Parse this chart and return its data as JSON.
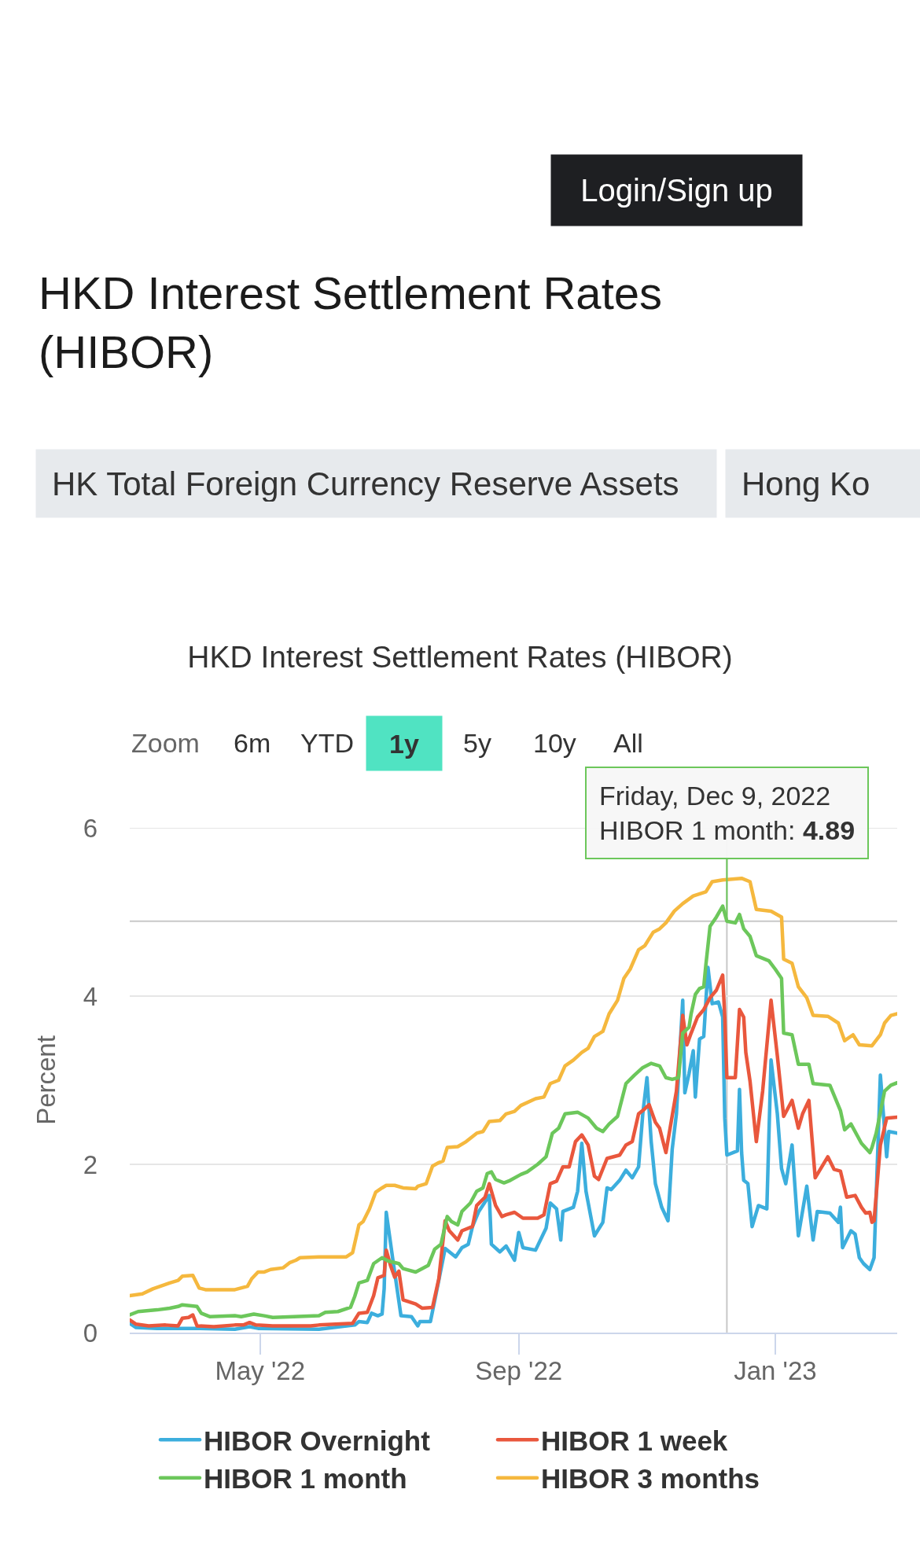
{
  "chart_data": {
    "type": "line",
    "title": "HKD Interest Settlement Rates (HIBOR)",
    "ylabel": "Percent",
    "xlim": [
      "2022-02-28",
      "2023-02-28"
    ],
    "xticks": [
      {
        "value": "2022-05-01",
        "label": "May '22"
      },
      {
        "value": "2022-09-01",
        "label": "Sep '22"
      },
      {
        "value": "2023-01-01",
        "label": "Jan '23"
      }
    ],
    "ylim": [
      0,
      6
    ],
    "yticks": [
      0,
      2,
      4,
      6
    ],
    "grid": "y",
    "legend": "bottom",
    "ref_lines": [
      {
        "axis": "x",
        "value": "2022-12-09",
        "color": "#c8c8c8"
      },
      {
        "axis": "y",
        "value": 4.89,
        "color": "#c8c8c8"
      }
    ],
    "annotations": [
      "Login/Sign up",
      "HKD Interest Settlement Rates (HIBOR)",
      "HK Total Foreign Currency Reserve Assets",
      "Hong Ko",
      "Zoom",
      "6m",
      "YTD",
      "1y",
      "5y",
      "10y",
      "All",
      {
        "text": "Friday, Dec 9, 2022\nHIBOR 1 month: 4.89",
        "x": "2022-12-09",
        "y": 4.89
      }
    ],
    "series": [
      {
        "name": "HIBOR Overnight",
        "color": "#3caedd",
        "x": [
          "2022-02-28",
          "2022-03-03",
          "2022-03-13",
          "2022-03-30",
          "2022-04-19",
          "2022-04-26",
          "2022-04-30",
          "2022-05-29",
          "2022-06-15",
          "2022-06-17",
          "2022-06-21",
          "2022-06-23",
          "2022-06-26",
          "2022-06-28",
          "2022-06-29",
          "2022-06-30",
          "2022-07-03",
          "2022-07-07",
          "2022-07-12",
          "2022-07-15",
          "2022-07-16",
          "2022-07-21",
          "2022-07-24",
          "2022-07-26",
          "2022-07-28",
          "2022-08-02",
          "2022-08-05",
          "2022-08-08",
          "2022-08-10",
          "2022-08-13",
          "2022-08-18",
          "2022-08-19",
          "2022-08-23",
          "2022-08-26",
          "2022-08-30",
          "2022-09-01",
          "2022-09-03",
          "2022-09-09",
          "2022-09-14",
          "2022-09-16",
          "2022-09-19",
          "2022-09-21",
          "2022-09-22",
          "2022-09-27",
          "2022-09-29",
          "2022-10-01",
          "2022-10-03",
          "2022-10-07",
          "2022-10-11",
          "2022-10-13",
          "2022-10-15",
          "2022-10-19",
          "2022-10-22",
          "2022-10-25",
          "2022-10-28",
          "2022-10-30",
          "2022-11-01",
          "2022-11-03",
          "2022-11-05",
          "2022-11-08",
          "2022-11-11",
          "2022-11-13",
          "2022-11-15",
          "2022-11-18",
          "2022-11-19",
          "2022-11-21",
          "2022-11-23",
          "2022-11-24",
          "2022-11-26",
          "2022-11-28",
          "2022-11-30",
          "2022-12-02",
          "2022-12-05",
          "2022-12-07",
          "2022-12-08",
          "2022-12-09",
          "2022-12-14",
          "2022-12-15",
          "2022-12-16",
          "2022-12-17",
          "2022-12-19",
          "2022-12-21",
          "2022-12-24",
          "2022-12-28",
          "2022-12-30",
          "2023-01-02",
          "2023-01-04",
          "2023-01-06",
          "2023-01-09",
          "2023-01-12",
          "2023-01-16",
          "2023-01-19",
          "2023-01-21",
          "2023-01-27",
          "2023-01-31",
          "2023-02-01",
          "2023-02-02",
          "2023-02-06",
          "2023-02-08",
          "2023-02-10",
          "2023-02-12",
          "2023-02-15",
          "2023-02-17",
          "2023-02-20",
          "2023-02-23",
          "2023-02-24",
          "2023-02-28"
        ],
        "values": [
          0.11,
          0.06,
          0.05,
          0.05,
          0.04,
          0.07,
          0.05,
          0.04,
          0.09,
          0.13,
          0.12,
          0.23,
          0.2,
          0.22,
          0.52,
          1.43,
          0.89,
          0.2,
          0.19,
          0.08,
          0.13,
          0.13,
          0.5,
          0.75,
          1.0,
          0.9,
          1.01,
          1.05,
          1.26,
          1.44,
          1.63,
          1.05,
          0.96,
          1.03,
          0.86,
          1.19,
          1.01,
          0.98,
          1.24,
          1.54,
          1.47,
          1.1,
          1.44,
          1.49,
          1.68,
          2.25,
          1.68,
          1.15,
          1.31,
          1.72,
          1.7,
          1.81,
          1.93,
          1.84,
          1.97,
          2.6,
          3.03,
          2.27,
          1.77,
          1.49,
          1.33,
          2.18,
          2.6,
          3.95,
          2.85,
          3.08,
          3.35,
          2.8,
          3.49,
          3.52,
          4.34,
          3.91,
          3.93,
          3.75,
          2.55,
          2.11,
          2.16,
          2.89,
          2.14,
          1.81,
          1.77,
          1.26,
          1.51,
          1.47,
          3.24,
          2.6,
          1.95,
          1.77,
          2.23,
          1.15,
          1.74,
          1.1,
          1.44,
          1.42,
          1.31,
          1.49,
          1.01,
          1.21,
          1.17,
          0.89,
          0.82,
          0.75,
          0.89,
          3.06,
          2.09,
          2.39,
          2.37
        ]
      },
      {
        "name": "HIBOR 1 week",
        "color": "#e9573d",
        "x": [
          "2022-02-28",
          "2022-03-03",
          "2022-03-09",
          "2022-03-17",
          "2022-03-23",
          "2022-03-25",
          "2022-03-28",
          "2022-03-30",
          "2022-04-01",
          "2022-04-09",
          "2022-04-19",
          "2022-04-23",
          "2022-04-26",
          "2022-04-29",
          "2022-05-07",
          "2022-05-25",
          "2022-05-29",
          "2022-06-14",
          "2022-06-17",
          "2022-06-21",
          "2022-06-24",
          "2022-06-26",
          "2022-06-29",
          "2022-06-30",
          "2022-07-02",
          "2022-07-04",
          "2022-07-06",
          "2022-07-08",
          "2022-07-14",
          "2022-07-17",
          "2022-07-22",
          "2022-07-25",
          "2022-07-28",
          "2022-07-30",
          "2022-08-03",
          "2022-08-05",
          "2022-08-10",
          "2022-08-12",
          "2022-08-16",
          "2022-08-18",
          "2022-08-21",
          "2022-08-24",
          "2022-08-26",
          "2022-08-30",
          "2022-09-03",
          "2022-09-10",
          "2022-09-13",
          "2022-09-16",
          "2022-09-19",
          "2022-09-22",
          "2022-09-25",
          "2022-09-28",
          "2022-10-01",
          "2022-10-04",
          "2022-10-07",
          "2022-10-09",
          "2022-10-13",
          "2022-10-19",
          "2022-10-22",
          "2022-10-25",
          "2022-10-28",
          "2022-10-30",
          "2022-11-02",
          "2022-11-05",
          "2022-11-07",
          "2022-11-10",
          "2022-11-15",
          "2022-11-18",
          "2022-11-20",
          "2022-11-22",
          "2022-11-25",
          "2022-11-28",
          "2022-12-01",
          "2022-12-04",
          "2022-12-07",
          "2022-12-08",
          "2022-12-09",
          "2022-12-13",
          "2022-12-15",
          "2022-12-17",
          "2022-12-18",
          "2022-12-20",
          "2022-12-23",
          "2022-12-26",
          "2022-12-30",
          "2023-01-02",
          "2023-01-05",
          "2023-01-09",
          "2023-01-12",
          "2023-01-14",
          "2023-01-17",
          "2023-01-20",
          "2023-01-26",
          "2023-01-29",
          "2023-02-01",
          "2023-02-04",
          "2023-02-08",
          "2023-02-11",
          "2023-02-13",
          "2023-02-15",
          "2023-02-16",
          "2023-02-17",
          "2023-02-20",
          "2023-02-23",
          "2023-02-28"
        ],
        "values": [
          0.15,
          0.1,
          0.08,
          0.09,
          0.08,
          0.17,
          0.18,
          0.21,
          0.08,
          0.07,
          0.09,
          0.09,
          0.12,
          0.09,
          0.08,
          0.08,
          0.09,
          0.11,
          0.23,
          0.24,
          0.44,
          0.65,
          0.68,
          0.98,
          0.8,
          0.66,
          0.73,
          0.39,
          0.34,
          0.29,
          0.3,
          0.64,
          1.33,
          1.21,
          1.1,
          1.21,
          1.26,
          1.51,
          1.61,
          1.77,
          1.51,
          1.38,
          1.4,
          1.43,
          1.36,
          1.36,
          1.4,
          1.77,
          1.8,
          1.97,
          1.97,
          2.27,
          2.35,
          2.23,
          1.86,
          1.82,
          2.07,
          2.11,
          2.23,
          2.27,
          2.6,
          2.64,
          2.71,
          2.5,
          2.43,
          2.14,
          2.87,
          3.77,
          3.42,
          3.56,
          3.75,
          3.84,
          3.98,
          4.07,
          4.25,
          3.75,
          3.03,
          3.03,
          3.84,
          3.75,
          3.33,
          2.99,
          2.27,
          2.87,
          3.95,
          3.29,
          2.57,
          2.76,
          2.43,
          2.6,
          2.76,
          1.84,
          2.09,
          1.94,
          1.92,
          1.61,
          1.63,
          1.49,
          1.42,
          1.43,
          1.31,
          1.33,
          2.23,
          2.55,
          2.56
        ]
      },
      {
        "name": "HIBOR 1 month",
        "color": "#6cc75b",
        "x": [
          "2022-02-28",
          "2022-03-04",
          "2022-03-13",
          "2022-03-19",
          "2022-03-23",
          "2022-03-25",
          "2022-04-01",
          "2022-04-03",
          "2022-04-07",
          "2022-04-19",
          "2022-04-22",
          "2022-04-28",
          "2022-05-03",
          "2022-05-07",
          "2022-05-17",
          "2022-05-29",
          "2022-06-01",
          "2022-06-07",
          "2022-06-13",
          "2022-06-15",
          "2022-06-17",
          "2022-06-21",
          "2022-06-24",
          "2022-06-28",
          "2022-07-01",
          "2022-07-06",
          "2022-07-08",
          "2022-07-14",
          "2022-07-17",
          "2022-07-20",
          "2022-07-23",
          "2022-07-26",
          "2022-07-29",
          "2022-07-31",
          "2022-08-03",
          "2022-08-05",
          "2022-08-09",
          "2022-08-12",
          "2022-08-15",
          "2022-08-17",
          "2022-08-19",
          "2022-08-21",
          "2022-08-25",
          "2022-08-28",
          "2022-09-02",
          "2022-09-05",
          "2022-09-10",
          "2022-09-14",
          "2022-09-17",
          "2022-09-20",
          "2022-09-23",
          "2022-09-29",
          "2022-10-04",
          "2022-10-08",
          "2022-10-11",
          "2022-10-14",
          "2022-10-18",
          "2022-10-22",
          "2022-10-26",
          "2022-10-30",
          "2022-11-03",
          "2022-11-07",
          "2022-11-10",
          "2022-11-13",
          "2022-11-16",
          "2022-11-18",
          "2022-11-21",
          "2022-11-22",
          "2022-11-24",
          "2022-11-26",
          "2022-11-28",
          "2022-11-29",
          "2022-12-01",
          "2022-12-04",
          "2022-12-07",
          "2022-12-09",
          "2022-12-13",
          "2022-12-15",
          "2022-12-17",
          "2022-12-20",
          "2022-12-23",
          "2022-12-29",
          "2023-01-01",
          "2023-01-04",
          "2023-01-05",
          "2023-01-09",
          "2023-01-12",
          "2023-01-17",
          "2023-01-19",
          "2023-01-27",
          "2023-02-01",
          "2023-02-03",
          "2023-02-06",
          "2023-02-11",
          "2023-02-15",
          "2023-02-16",
          "2023-02-18",
          "2023-02-22",
          "2023-02-25",
          "2023-02-28"
        ],
        "values": [
          0.21,
          0.25,
          0.27,
          0.29,
          0.31,
          0.33,
          0.31,
          0.23,
          0.19,
          0.2,
          0.19,
          0.22,
          0.2,
          0.18,
          0.19,
          0.2,
          0.24,
          0.25,
          0.3,
          0.43,
          0.59,
          0.62,
          0.82,
          0.89,
          0.85,
          0.82,
          0.76,
          0.72,
          0.76,
          0.8,
          0.99,
          1.05,
          1.38,
          1.32,
          1.28,
          1.44,
          1.54,
          1.68,
          1.72,
          1.89,
          1.91,
          1.82,
          1.78,
          1.81,
          1.88,
          1.91,
          2.0,
          2.09,
          2.37,
          2.43,
          2.6,
          2.62,
          2.55,
          2.43,
          2.39,
          2.48,
          2.57,
          2.96,
          3.06,
          3.15,
          3.2,
          3.17,
          3.03,
          3.01,
          3.03,
          3.56,
          3.63,
          3.79,
          4.02,
          4.09,
          4.11,
          4.37,
          4.83,
          4.94,
          5.07,
          4.89,
          4.87,
          4.97,
          4.8,
          4.71,
          4.48,
          4.42,
          4.32,
          4.21,
          3.56,
          3.54,
          3.19,
          3.19,
          2.96,
          2.94,
          2.64,
          2.41,
          2.48,
          2.25,
          2.14,
          2.2,
          2.37,
          2.87,
          2.94,
          2.97
        ]
      },
      {
        "name": "HIBOR 3 months",
        "color": "#f5b83e",
        "x": [
          "2022-02-28",
          "2022-03-06",
          "2022-03-11",
          "2022-03-19",
          "2022-03-23",
          "2022-03-25",
          "2022-03-30",
          "2022-04-02",
          "2022-04-05",
          "2022-04-19",
          "2022-04-25",
          "2022-04-27",
          "2022-04-30",
          "2022-05-03",
          "2022-05-06",
          "2022-05-12",
          "2022-05-15",
          "2022-05-18",
          "2022-05-20",
          "2022-05-29",
          "2022-06-11",
          "2022-06-14",
          "2022-06-17",
          "2022-06-19",
          "2022-06-22",
          "2022-06-25",
          "2022-06-28",
          "2022-06-30",
          "2022-07-04",
          "2022-07-08",
          "2022-07-14",
          "2022-07-15",
          "2022-07-19",
          "2022-07-22",
          "2022-07-25",
          "2022-07-27",
          "2022-07-29",
          "2022-08-03",
          "2022-08-07",
          "2022-08-12",
          "2022-08-15",
          "2022-08-18",
          "2022-08-23",
          "2022-08-26",
          "2022-08-30",
          "2022-09-02",
          "2022-09-09",
          "2022-09-13",
          "2022-09-16",
          "2022-09-20",
          "2022-09-23",
          "2022-09-27",
          "2022-10-01",
          "2022-10-04",
          "2022-10-07",
          "2022-10-11",
          "2022-10-14",
          "2022-10-18",
          "2022-10-21",
          "2022-10-24",
          "2022-10-28",
          "2022-10-31",
          "2022-11-04",
          "2022-11-07",
          "2022-11-10",
          "2022-11-14",
          "2022-11-18",
          "2022-11-23",
          "2022-11-29",
          "2022-12-02",
          "2022-12-07",
          "2022-12-16",
          "2022-12-20",
          "2022-12-23",
          "2022-12-30",
          "2023-01-04",
          "2023-01-05",
          "2023-01-09",
          "2023-01-12",
          "2023-01-16",
          "2023-01-19",
          "2023-01-26",
          "2023-01-31",
          "2023-02-03",
          "2023-02-07",
          "2023-02-10",
          "2023-02-16",
          "2023-02-20",
          "2023-02-22",
          "2023-02-25",
          "2023-02-28"
        ],
        "values": [
          0.44,
          0.46,
          0.52,
          0.59,
          0.62,
          0.67,
          0.68,
          0.53,
          0.51,
          0.51,
          0.55,
          0.64,
          0.72,
          0.72,
          0.75,
          0.77,
          0.83,
          0.86,
          0.89,
          0.9,
          0.9,
          0.95,
          1.28,
          1.32,
          1.47,
          1.67,
          1.72,
          1.75,
          1.75,
          1.72,
          1.71,
          1.74,
          1.77,
          1.98,
          2.02,
          2.04,
          2.2,
          2.21,
          2.27,
          2.37,
          2.39,
          2.51,
          2.52,
          2.6,
          2.63,
          2.7,
          2.78,
          2.8,
          2.96,
          3.0,
          3.17,
          3.24,
          3.33,
          3.38,
          3.52,
          3.58,
          3.79,
          3.95,
          4.21,
          4.32,
          4.55,
          4.6,
          4.76,
          4.8,
          4.87,
          5.01,
          5.1,
          5.19,
          5.24,
          5.36,
          5.38,
          5.4,
          5.36,
          5.03,
          5.01,
          4.94,
          4.44,
          4.39,
          4.11,
          3.98,
          3.77,
          3.76,
          3.68,
          3.47,
          3.54,
          3.42,
          3.41,
          3.54,
          3.68,
          3.77,
          3.79
        ]
      }
    ]
  }
}
